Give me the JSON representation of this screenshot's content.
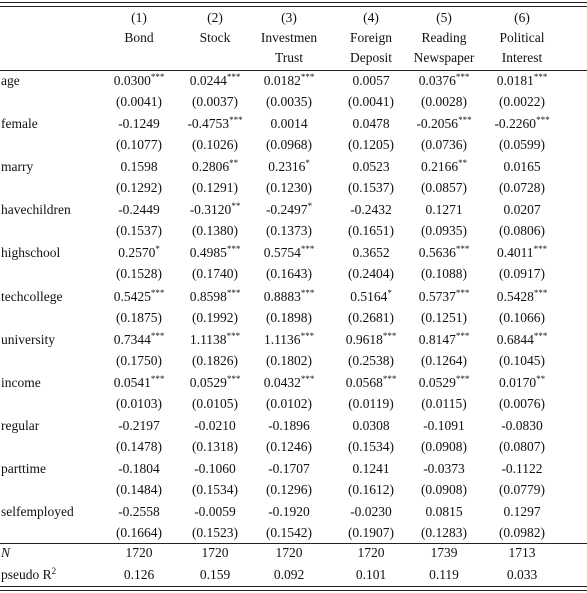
{
  "header": {
    "columns": [
      {
        "number": "(1)",
        "line1": "Bond"
      },
      {
        "number": "(2)",
        "line1": "Stock"
      },
      {
        "number": "(3)",
        "line1": "Investmen",
        "line2": "Trust"
      },
      {
        "number": "(4)",
        "line1": "Foreign",
        "line2": "Deposit"
      },
      {
        "number": "(5)",
        "line1": "Reading",
        "line2": "Newspaper"
      },
      {
        "number": "(6)",
        "line1": "Political",
        "line2": "Interest"
      }
    ]
  },
  "rows": [
    {
      "name": "age",
      "coef": [
        {
          "value": "0.0300",
          "stars": "***"
        },
        {
          "value": "0.0244",
          "stars": "***"
        },
        {
          "value": "0.0182",
          "stars": "***"
        },
        {
          "value": "0.0057"
        },
        {
          "value": "0.0376",
          "stars": "***"
        },
        {
          "value": "0.0181",
          "stars": "***"
        }
      ],
      "se": [
        "(0.0041)",
        "(0.0037)",
        "(0.0035)",
        "(0.0041)",
        "(0.0028)",
        "(0.0022)"
      ]
    },
    {
      "name": "female",
      "coef": [
        {
          "value": "-0.1249"
        },
        {
          "value": "-0.4753",
          "stars": "***"
        },
        {
          "value": "0.0014"
        },
        {
          "value": "0.0478"
        },
        {
          "value": "-0.2056",
          "stars": "***"
        },
        {
          "value": "-0.2260",
          "stars": "***"
        }
      ],
      "se": [
        "(0.1077)",
        "(0.1026)",
        "(0.0968)",
        "(0.1205)",
        "(0.0736)",
        "(0.0599)"
      ]
    },
    {
      "name": "marry",
      "coef": [
        {
          "value": "0.1598"
        },
        {
          "value": "0.2806",
          "stars": "**"
        },
        {
          "value": "0.2316",
          "stars": "*"
        },
        {
          "value": "0.0523"
        },
        {
          "value": "0.2166",
          "stars": "**"
        },
        {
          "value": "0.0165"
        }
      ],
      "se": [
        "(0.1292)",
        "(0.1291)",
        "(0.1230)",
        "(0.1537)",
        "(0.0857)",
        "(0.0728)"
      ]
    },
    {
      "name": "havechildren",
      "coef": [
        {
          "value": "-0.2449"
        },
        {
          "value": "-0.3120",
          "stars": "**"
        },
        {
          "value": "-0.2497",
          "stars": "*"
        },
        {
          "value": "-0.2432"
        },
        {
          "value": "0.1271"
        },
        {
          "value": "0.0207"
        }
      ],
      "se": [
        "(0.1537)",
        "(0.1380)",
        "(0.1373)",
        "(0.1651)",
        "(0.0935)",
        "(0.0806)"
      ]
    },
    {
      "name": "highschool",
      "coef": [
        {
          "value": "0.2570",
          "stars": "*"
        },
        {
          "value": "0.4985",
          "stars": "***"
        },
        {
          "value": "0.5754",
          "stars": "***"
        },
        {
          "value": "0.3652"
        },
        {
          "value": "0.5636",
          "stars": "***"
        },
        {
          "value": "0.4011",
          "stars": "***"
        }
      ],
      "se": [
        "(0.1528)",
        "(0.1740)",
        "(0.1643)",
        "(0.2404)",
        "(0.1088)",
        "(0.0917)"
      ]
    },
    {
      "name": "techcollege",
      "coef": [
        {
          "value": "0.5425",
          "stars": "***"
        },
        {
          "value": "0.8598",
          "stars": "***"
        },
        {
          "value": "0.8883",
          "stars": "***"
        },
        {
          "value": "0.5164",
          "stars": "*"
        },
        {
          "value": "0.5737",
          "stars": "***"
        },
        {
          "value": "0.5428",
          "stars": "***"
        }
      ],
      "se": [
        "(0.1875)",
        "(0.1992)",
        "(0.1898)",
        "(0.2681)",
        "(0.1251)",
        "(0.1066)"
      ]
    },
    {
      "name": "university",
      "coef": [
        {
          "value": "0.7344",
          "stars": "***"
        },
        {
          "value": "1.1138",
          "stars": "***"
        },
        {
          "value": "1.1136",
          "stars": "***"
        },
        {
          "value": "0.9618",
          "stars": "***"
        },
        {
          "value": "0.8147",
          "stars": "***"
        },
        {
          "value": "0.6844",
          "stars": "***"
        }
      ],
      "se": [
        "(0.1750)",
        "(0.1826)",
        "(0.1802)",
        "(0.2538)",
        "(0.1264)",
        "(0.1045)"
      ]
    },
    {
      "name": "income",
      "coef": [
        {
          "value": "0.0541",
          "stars": "***"
        },
        {
          "value": "0.0529",
          "stars": "***"
        },
        {
          "value": "0.0432",
          "stars": "***"
        },
        {
          "value": "0.0568",
          "stars": "***"
        },
        {
          "value": "0.0529",
          "stars": "***"
        },
        {
          "value": "0.0170",
          "stars": "**"
        }
      ],
      "se": [
        "(0.0103)",
        "(0.0105)",
        "(0.0102)",
        "(0.0119)",
        "(0.0115)",
        "(0.0076)"
      ]
    },
    {
      "name": "regular",
      "coef": [
        {
          "value": "-0.2197"
        },
        {
          "value": "-0.0210"
        },
        {
          "value": "-0.1896"
        },
        {
          "value": "0.0308"
        },
        {
          "value": "-0.1091"
        },
        {
          "value": "-0.0830"
        }
      ],
      "se": [
        "(0.1478)",
        "(0.1318)",
        "(0.1246)",
        "(0.1534)",
        "(0.0908)",
        "(0.0807)"
      ]
    },
    {
      "name": "parttime",
      "coef": [
        {
          "value": "-0.1804"
        },
        {
          "value": "-0.1060"
        },
        {
          "value": "-0.1707"
        },
        {
          "value": "0.1241"
        },
        {
          "value": "-0.0373"
        },
        {
          "value": "-0.1122"
        }
      ],
      "se": [
        "(0.1484)",
        "(0.1534)",
        "(0.1296)",
        "(0.1612)",
        "(0.0908)",
        "(0.0779)"
      ]
    },
    {
      "name": "selfemployed",
      "coef": [
        {
          "value": "-0.2558"
        },
        {
          "value": "-0.0059"
        },
        {
          "value": "-0.1920"
        },
        {
          "value": "-0.0230"
        },
        {
          "value": "0.0815"
        },
        {
          "value": "0.1297"
        }
      ],
      "se": [
        "(0.1664)",
        "(0.1523)",
        "(0.1542)",
        "(0.1907)",
        "(0.1283)",
        "(0.0982)"
      ]
    }
  ],
  "stats": [
    {
      "label": {
        "text": "N"
      },
      "values": [
        "1720",
        "1720",
        "1720",
        "1720",
        "1739",
        "1713"
      ]
    },
    {
      "label": {
        "text": "pseudo R",
        "sup": "2"
      },
      "values": [
        "0.126",
        "0.159",
        "0.092",
        "0.101",
        "0.119",
        "0.033"
      ]
    }
  ]
}
